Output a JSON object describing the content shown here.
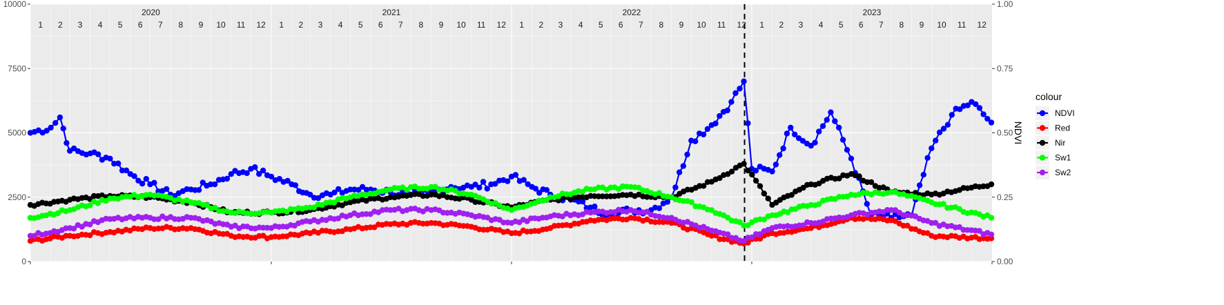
{
  "chart_data": {
    "type": "line",
    "x_unit": "month",
    "years": [
      "2020",
      "2021",
      "2022",
      "2023"
    ],
    "months": [
      "1",
      "2",
      "3",
      "4",
      "5",
      "6",
      "7",
      "8",
      "9",
      "10",
      "11",
      "12"
    ],
    "ylim_left": [
      0,
      10000
    ],
    "yticks_left": [
      "0",
      "2500",
      "5000",
      "7500",
      "10000"
    ],
    "ylim_right": [
      0,
      1
    ],
    "yticks_right": [
      "0.00",
      "0.25",
      "0.50",
      "0.75",
      "1.00"
    ],
    "right_axis_label": "NDVI",
    "vline_date": "2022-12-21",
    "legend_title": "colour",
    "grid": true,
    "series": [
      {
        "name": "NDVI",
        "axis": "right",
        "color": "#0000ff",
        "dates": [
          "2020-01-01",
          "2020-02-01",
          "2020-02-15",
          "2020-03-01",
          "2020-04-01",
          "2020-05-01",
          "2020-06-01",
          "2020-07-01",
          "2020-08-01",
          "2020-09-01",
          "2020-10-01",
          "2020-11-01",
          "2020-12-01",
          "2021-01-01",
          "2021-02-01",
          "2021-03-01",
          "2021-04-01",
          "2021-05-01",
          "2021-06-01",
          "2021-07-01",
          "2021-08-01",
          "2021-09-01",
          "2021-10-01",
          "2021-11-01",
          "2021-12-01",
          "2022-01-01",
          "2022-02-01",
          "2022-03-01",
          "2022-04-01",
          "2022-05-01",
          "2022-06-01",
          "2022-07-01",
          "2022-08-01",
          "2022-09-01",
          "2022-10-01",
          "2022-11-01",
          "2022-12-01",
          "2022-12-20",
          "2023-01-01",
          "2023-02-01",
          "2023-03-01",
          "2023-04-01",
          "2023-05-01",
          "2023-06-01",
          "2023-07-01",
          "2023-08-01",
          "2023-09-01",
          "2023-10-01",
          "2023-11-01",
          "2023-12-01",
          "2023-12-31"
        ],
        "values": [
          0.5,
          0.52,
          0.56,
          0.43,
          0.42,
          0.4,
          0.34,
          0.3,
          0.26,
          0.28,
          0.3,
          0.34,
          0.36,
          0.33,
          0.3,
          0.26,
          0.26,
          0.28,
          0.28,
          0.27,
          0.26,
          0.27,
          0.29,
          0.29,
          0.3,
          0.33,
          0.29,
          0.26,
          0.24,
          0.21,
          0.18,
          0.2,
          0.2,
          0.25,
          0.47,
          0.53,
          0.62,
          0.7,
          0.36,
          0.35,
          0.52,
          0.45,
          0.58,
          0.4,
          0.18,
          0.17,
          0.18,
          0.44,
          0.57,
          0.62,
          0.54
        ]
      },
      {
        "name": "Red",
        "axis": "left",
        "color": "#ff0000",
        "dates": [
          "2020-01-01",
          "2020-03-01",
          "2020-05-01",
          "2020-07-01",
          "2020-09-01",
          "2020-11-01",
          "2021-01-01",
          "2021-03-01",
          "2021-05-01",
          "2021-07-01",
          "2021-09-01",
          "2021-11-01",
          "2022-01-01",
          "2022-03-01",
          "2022-05-01",
          "2022-07-01",
          "2022-09-01",
          "2022-11-01",
          "2022-12-20",
          "2023-02-01",
          "2023-04-01",
          "2023-06-01",
          "2023-08-01",
          "2023-10-01",
          "2023-12-31"
        ],
        "values": [
          800,
          1000,
          1150,
          1300,
          1300,
          1000,
          950,
          1100,
          1250,
          1450,
          1500,
          1350,
          1100,
          1300,
          1600,
          1700,
          1500,
          1000,
          700,
          1100,
          1300,
          1700,
          1600,
          1000,
          900
        ]
      },
      {
        "name": "Nir",
        "axis": "left",
        "color": "#000000",
        "dates": [
          "2020-01-01",
          "2020-03-01",
          "2020-05-01",
          "2020-07-01",
          "2020-09-01",
          "2020-11-01",
          "2021-01-01",
          "2021-03-01",
          "2021-05-01",
          "2021-07-01",
          "2021-09-01",
          "2021-11-01",
          "2022-01-01",
          "2022-03-01",
          "2022-05-01",
          "2022-07-01",
          "2022-09-01",
          "2022-11-01",
          "2022-12-20",
          "2023-02-01",
          "2023-04-01",
          "2023-06-01",
          "2023-08-01",
          "2023-10-01",
          "2023-12-31"
        ],
        "values": [
          2200,
          2400,
          2550,
          2500,
          2300,
          1900,
          1900,
          2000,
          2300,
          2500,
          2600,
          2400,
          2100,
          2400,
          2550,
          2600,
          2500,
          3100,
          3800,
          2200,
          3000,
          3400,
          2700,
          2600,
          3000
        ]
      },
      {
        "name": "Sw1",
        "axis": "left",
        "color": "#00ff00",
        "dates": [
          "2020-01-01",
          "2020-03-01",
          "2020-05-01",
          "2020-07-01",
          "2020-09-01",
          "2020-11-01",
          "2021-01-01",
          "2021-03-01",
          "2021-05-01",
          "2021-07-01",
          "2021-09-01",
          "2021-11-01",
          "2022-01-01",
          "2022-03-01",
          "2022-05-01",
          "2022-07-01",
          "2022-09-01",
          "2022-11-01",
          "2022-12-20",
          "2023-02-01",
          "2023-04-01",
          "2023-06-01",
          "2023-08-01",
          "2023-10-01",
          "2023-12-31"
        ],
        "values": [
          1700,
          2000,
          2450,
          2600,
          2300,
          1900,
          1900,
          2100,
          2500,
          2800,
          2900,
          2600,
          2000,
          2500,
          2800,
          2900,
          2500,
          2000,
          1400,
          1800,
          2200,
          2600,
          2700,
          2300,
          1700
        ]
      },
      {
        "name": "Sw2",
        "axis": "left",
        "color": "#a020f0",
        "dates": [
          "2020-01-01",
          "2020-03-01",
          "2020-05-01",
          "2020-07-01",
          "2020-09-01",
          "2020-11-01",
          "2021-01-01",
          "2021-03-01",
          "2021-05-01",
          "2021-07-01",
          "2021-09-01",
          "2021-11-01",
          "2022-01-01",
          "2022-03-01",
          "2022-05-01",
          "2022-07-01",
          "2022-09-01",
          "2022-11-01",
          "2022-12-20",
          "2023-02-01",
          "2023-04-01",
          "2023-06-01",
          "2023-08-01",
          "2023-10-01",
          "2023-12-31"
        ],
        "values": [
          1000,
          1300,
          1650,
          1700,
          1700,
          1350,
          1300,
          1550,
          1800,
          2000,
          2000,
          1800,
          1500,
          1750,
          1900,
          2000,
          1700,
          1200,
          800,
          1300,
          1500,
          1800,
          2000,
          1500,
          1050
        ]
      }
    ]
  }
}
